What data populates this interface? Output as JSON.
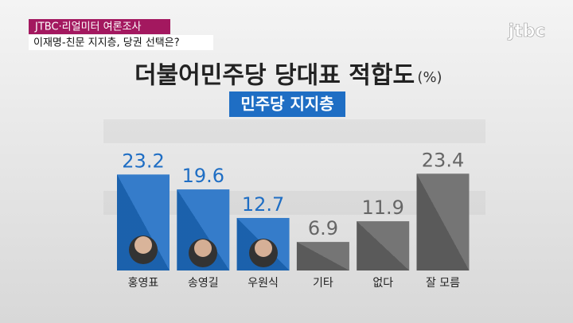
{
  "header": {
    "tag": "JTBC·리얼미터 여론조사",
    "headline": "이재명-친문 지지층, 당권 선택은?",
    "logo": "jtbc"
  },
  "chart_data": {
    "type": "bar",
    "title": "더불어민주당 당대표 적합도",
    "unit": "(%)",
    "subtitle": "민주당 지지층",
    "categories": [
      "홍영표",
      "송영길",
      "우원식",
      "기타",
      "없다",
      "잘 모름"
    ],
    "values": [
      23.2,
      19.6,
      12.7,
      6.9,
      11.9,
      23.4
    ],
    "colors": [
      "#1f6ec4",
      "#1f6ec4",
      "#1f6ec4",
      "#666666",
      "#666666",
      "#666666"
    ]
  }
}
